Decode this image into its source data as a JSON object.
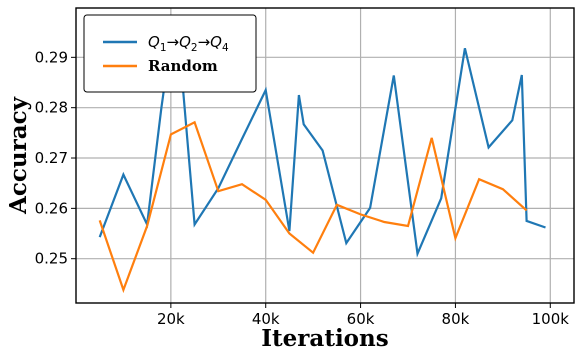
{
  "chart_data": {
    "type": "line",
    "title": "",
    "xlabel": "Iterations",
    "ylabel": "Accuracy",
    "xlim": [
      0,
      105000
    ],
    "ylim": [
      0.2412,
      0.2998
    ],
    "xticks": [
      20000,
      40000,
      60000,
      80000,
      100000
    ],
    "xtick_labels": [
      "20k",
      "40k",
      "60k",
      "80k",
      "100k"
    ],
    "yticks": [
      0.25,
      0.26,
      0.27,
      0.28,
      0.29
    ],
    "ytick_labels": [
      "0.25",
      "0.26",
      "0.27",
      "0.28",
      "0.29"
    ],
    "grid": true,
    "legend_position": "top-left",
    "series": [
      {
        "name": "Q1→Q2→Q4",
        "legend_parts": [
          {
            "text": "Q",
            "style": "italic"
          },
          {
            "text": "1",
            "style": "sub"
          },
          {
            "text": "→",
            "style": "normal"
          },
          {
            "text": "Q",
            "style": "italic"
          },
          {
            "text": "2",
            "style": "sub"
          },
          {
            "text": "→",
            "style": "normal"
          },
          {
            "text": "Q",
            "style": "italic"
          },
          {
            "text": "4",
            "style": "sub"
          }
        ],
        "color": "#1f77b4",
        "x": [
          5000,
          10000,
          15000,
          18000,
          20000,
          22000,
          25000,
          30000,
          35000,
          40000,
          45000,
          47000,
          48000,
          52000,
          57000,
          62000,
          67000,
          72000,
          77000,
          82000,
          87000,
          92000,
          94000,
          95000,
          99000
        ],
        "y": [
          0.2543,
          0.2667,
          0.2568,
          0.28,
          0.2935,
          0.29,
          0.2568,
          0.264,
          0.2738,
          0.2835,
          0.2555,
          0.2825,
          0.2767,
          0.2715,
          0.2531,
          0.2601,
          0.2864,
          0.251,
          0.262,
          0.2918,
          0.2721,
          0.2775,
          0.2865,
          0.2575,
          0.2562
        ]
      },
      {
        "name": "Random",
        "color": "#ff7f0e",
        "x": [
          5000,
          10000,
          15000,
          20000,
          25000,
          30000,
          35000,
          40000,
          45000,
          50000,
          55000,
          60000,
          65000,
          70000,
          75000,
          80000,
          85000,
          90000,
          95000
        ],
        "y": [
          0.2576,
          0.2438,
          0.2565,
          0.2747,
          0.2771,
          0.2634,
          0.2648,
          0.2617,
          0.255,
          0.2512,
          0.2607,
          0.2588,
          0.2573,
          0.2565,
          0.274,
          0.2541,
          0.2658,
          0.2638,
          0.2596
        ]
      }
    ]
  }
}
